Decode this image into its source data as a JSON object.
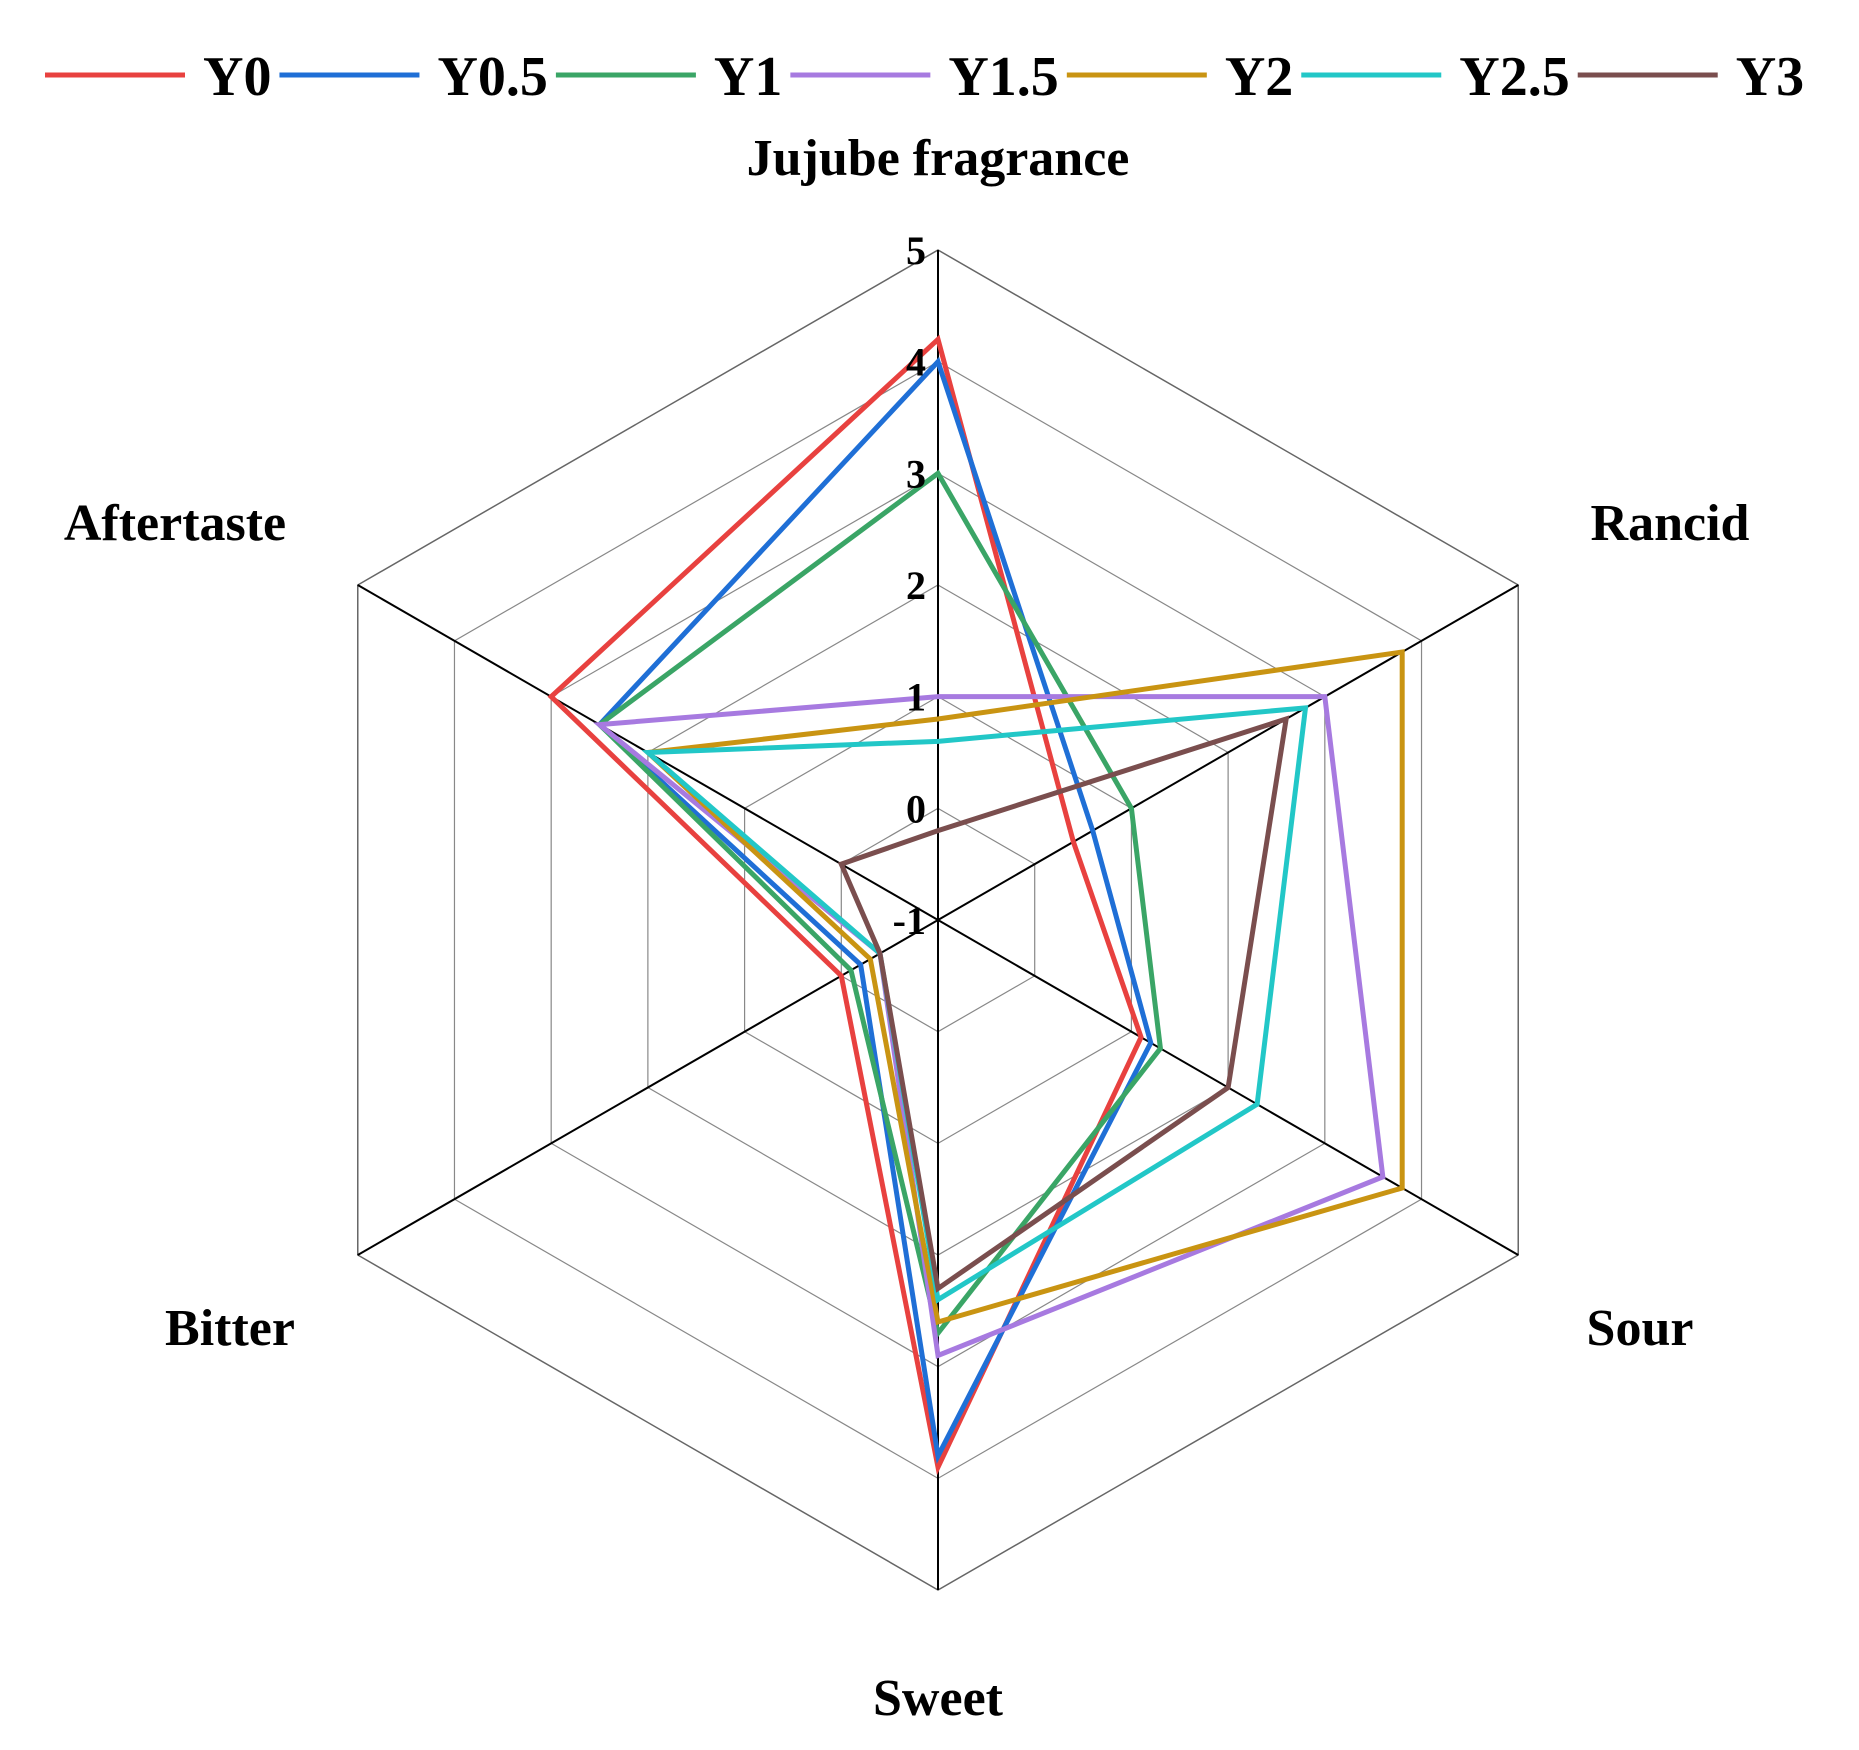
{
  "chart_data": {
    "type": "radar",
    "axes": [
      "Jujube fragrance",
      "Rancid",
      "Sour",
      "Sweet",
      "Bitter",
      "Aftertaste"
    ],
    "r_range": [
      -1,
      5
    ],
    "ticks": [
      "-1",
      "0",
      "1",
      "2",
      "3",
      "4",
      "5"
    ],
    "grid": true,
    "legend_position": "top",
    "series": [
      {
        "name": "Y0",
        "color": "#e8413f",
        "values": [
          4.2,
          0.4,
          1.1,
          3.9,
          0.0,
          3.0
        ]
      },
      {
        "name": "Y0.5",
        "color": "#1f6fd6",
        "values": [
          4.0,
          0.6,
          1.2,
          3.8,
          -0.2,
          2.5
        ]
      },
      {
        "name": "Y1",
        "color": "#3aa566",
        "values": [
          3.0,
          1.0,
          1.3,
          2.7,
          -0.1,
          2.5
        ]
      },
      {
        "name": "Y1.5",
        "color": "#a77ae0",
        "values": [
          1.0,
          3.0,
          3.6,
          2.9,
          -0.4,
          2.5
        ]
      },
      {
        "name": "Y2",
        "color": "#c99412",
        "values": [
          0.8,
          3.8,
          3.8,
          2.6,
          -0.3,
          2.0
        ]
      },
      {
        "name": "Y2.5",
        "color": "#22c7c7",
        "values": [
          0.6,
          2.8,
          2.3,
          2.4,
          -0.4,
          2.0
        ]
      },
      {
        "name": "Y3",
        "color": "#7a4e4e",
        "values": [
          -0.2,
          2.6,
          2.0,
          2.3,
          -0.4,
          0.0
        ]
      }
    ]
  }
}
